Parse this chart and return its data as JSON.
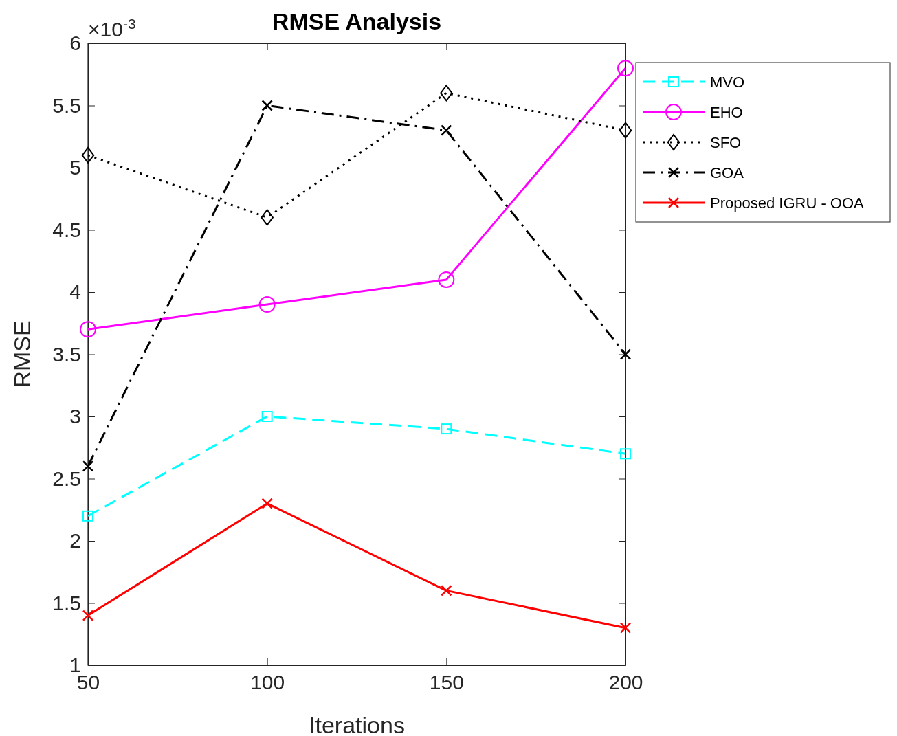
{
  "chart_data": {
    "type": "line",
    "title": "RMSE Analysis",
    "xlabel": "Iterations",
    "ylabel": "RMSE",
    "annotations": [
      "×10$^{-3}$"
    ],
    "x": [
      50,
      100,
      150,
      200
    ],
    "xlim": [
      50,
      200
    ],
    "xticks": [
      50,
      100,
      150,
      200
    ],
    "ylim": [
      1,
      6
    ],
    "yticks": [
      1,
      1.5,
      2,
      2.5,
      3,
      3.5,
      4,
      4.5,
      5,
      5.5,
      6
    ],
    "grid": false,
    "legend": "right",
    "series": [
      {
        "name": "MVO",
        "color": "#00ffff",
        "values": [
          2.2,
          3.0,
          2.9,
          2.7
        ],
        "marker": "square",
        "line_style": "dashed"
      },
      {
        "name": "EHO",
        "color": "#ff00ff",
        "values": [
          3.7,
          3.9,
          4.1,
          5.8
        ],
        "marker": "circle",
        "line_style": "solid"
      },
      {
        "name": "SFO",
        "color": "#000000",
        "values": [
          5.1,
          4.6,
          5.6,
          5.3
        ],
        "marker": "diamond",
        "line_style": "dotted"
      },
      {
        "name": "GOA",
        "color": "#000000",
        "values": [
          2.6,
          5.5,
          5.3,
          3.5
        ],
        "marker": "cross",
        "line_style": "dashdot"
      },
      {
        "name": "Proposed IGRU - OOA",
        "color": "#ff0000",
        "values": [
          1.4,
          2.3,
          1.6,
          1.3
        ],
        "marker": "cross",
        "line_style": "solid"
      }
    ]
  }
}
